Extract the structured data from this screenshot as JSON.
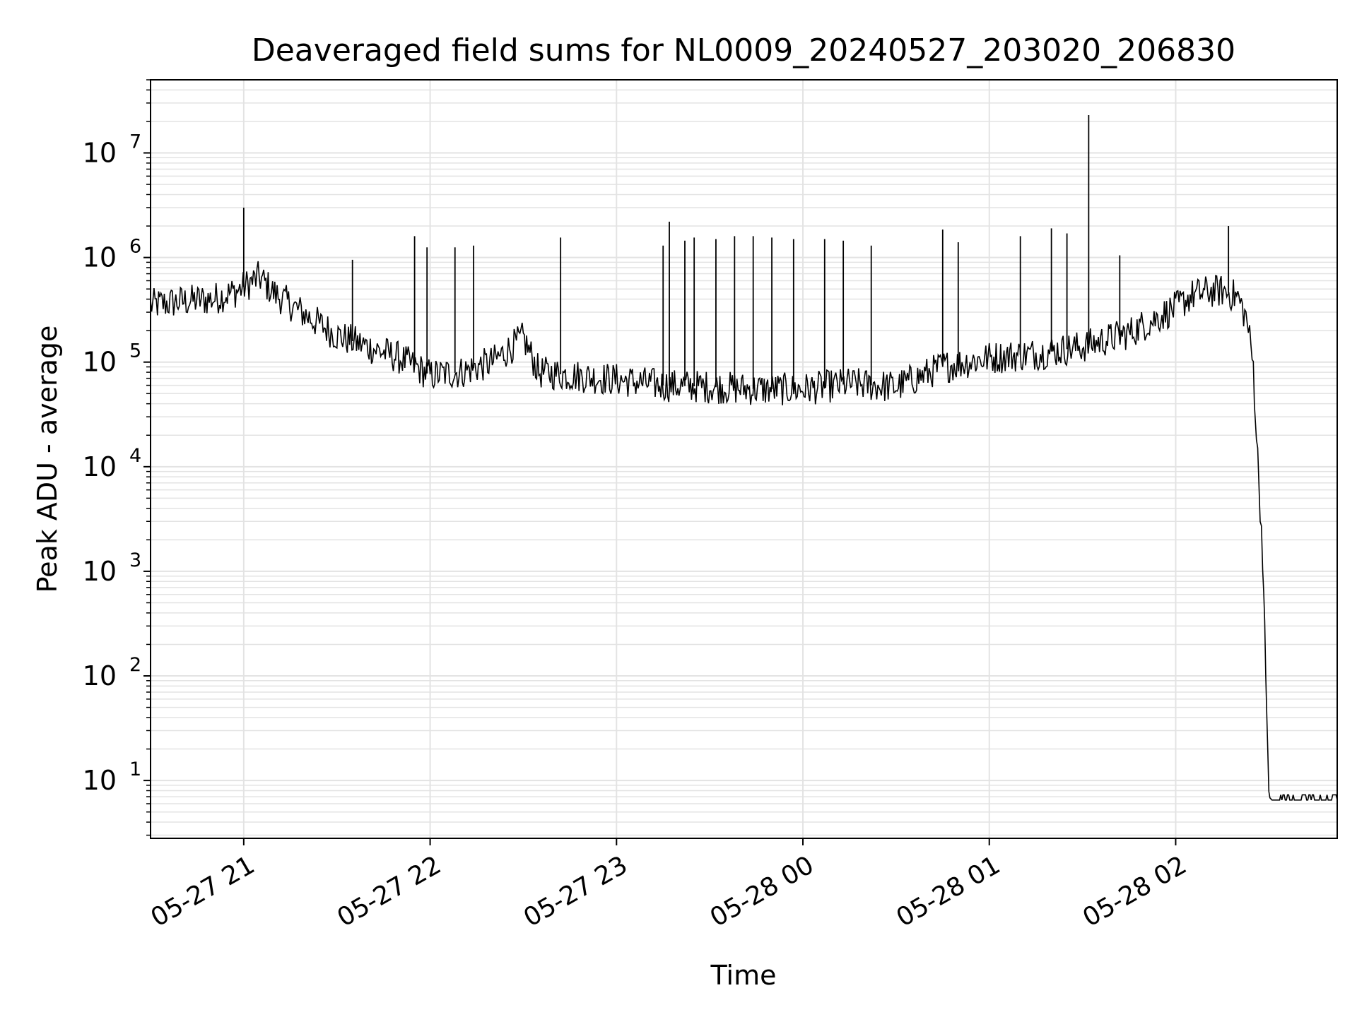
{
  "chart_data": {
    "type": "line",
    "title": "Deaveraged field sums for NL0009_20240527_203020_206830",
    "xlabel": "Time",
    "ylabel": "Peak ADU - average",
    "yscale": "log",
    "grid": true,
    "legend": "none",
    "line_color": "#000000",
    "grid_color": "#e3e3e3",
    "xlim": [
      "2024-05-27 20:30",
      "2024-05-28 02:52"
    ],
    "ylim": [
      2.8,
      50000000
    ],
    "x_ticks": [
      {
        "t": "2024-05-27 21:00",
        "label": "05-27 21"
      },
      {
        "t": "2024-05-27 22:00",
        "label": "05-27 22"
      },
      {
        "t": "2024-05-27 23:00",
        "label": "05-27 23"
      },
      {
        "t": "2024-05-28 00:00",
        "label": "05-28 00"
      },
      {
        "t": "2024-05-28 01:00",
        "label": "05-28 01"
      },
      {
        "t": "2024-05-28 02:00",
        "label": "05-28 02"
      }
    ],
    "y_ticks": [
      {
        "value": 10,
        "base": "10",
        "exp": "1"
      },
      {
        "value": 100,
        "base": "10",
        "exp": "2"
      },
      {
        "value": 1000,
        "base": "10",
        "exp": "3"
      },
      {
        "value": 10000,
        "base": "10",
        "exp": "4"
      },
      {
        "value": 100000,
        "base": "10",
        "exp": "5"
      },
      {
        "value": 1000000,
        "base": "10",
        "exp": "6"
      },
      {
        "value": 10000000,
        "base": "10",
        "exp": "7"
      }
    ],
    "series": [
      {
        "x": [
          "2024-05-27 20:30",
          "2024-05-27 20:40",
          "2024-05-27 20:50",
          "2024-05-27 20:58",
          "2024-05-27 21:05",
          "2024-05-27 21:10",
          "2024-05-27 21:20",
          "2024-05-27 21:30",
          "2024-05-27 21:40",
          "2024-05-27 21:50",
          "2024-05-27 22:00",
          "2024-05-27 22:10",
          "2024-05-27 22:20",
          "2024-05-27 22:30",
          "2024-05-27 22:35",
          "2024-05-27 22:45",
          "2024-05-27 23:00",
          "2024-05-27 23:15",
          "2024-05-27 23:30",
          "2024-05-27 23:45",
          "2024-05-28 00:00",
          "2024-05-28 00:15",
          "2024-05-28 00:30",
          "2024-05-28 00:45",
          "2024-05-28 01:00",
          "2024-05-28 01:15",
          "2024-05-28 01:30",
          "2024-05-28 01:45",
          "2024-05-28 02:00",
          "2024-05-28 02:05",
          "2024-05-28 02:10",
          "2024-05-28 02:15",
          "2024-05-28 02:20",
          "2024-05-28 02:23",
          "2024-05-28 02:25",
          "2024-05-28 02:26",
          "2024-05-28 02:28",
          "2024-05-28 02:29",
          "2024-05-28 02:30",
          "2024-05-28 02:31",
          "2024-05-28 02:32",
          "2024-05-28 02:40",
          "2024-05-28 02:52"
        ],
        "values": [
          350000,
          380000,
          400000,
          480000,
          650000,
          450000,
          280000,
          180000,
          140000,
          110000,
          75000,
          80000,
          100000,
          170000,
          80000,
          75000,
          68000,
          60000,
          58000,
          55000,
          55000,
          62000,
          58000,
          90000,
          110000,
          120000,
          140000,
          190000,
          330000,
          430000,
          470000,
          480000,
          420000,
          250000,
          90000,
          20000,
          1500,
          100,
          7,
          6.5,
          6.5,
          6.5,
          6.5
        ]
      }
    ],
    "spikes": [
      {
        "t": "2024-05-27 21:00",
        "value": 3000000
      },
      {
        "t": "2024-05-27 21:35",
        "value": 950000
      },
      {
        "t": "2024-05-27 21:55",
        "value": 1600000
      },
      {
        "t": "2024-05-27 21:59",
        "value": 1250000
      },
      {
        "t": "2024-05-27 22:08",
        "value": 1250000
      },
      {
        "t": "2024-05-27 22:14",
        "value": 1300000
      },
      {
        "t": "2024-05-27 22:42",
        "value": 1550000
      },
      {
        "t": "2024-05-27 23:15",
        "value": 1300000
      },
      {
        "t": "2024-05-27 23:17",
        "value": 2200000
      },
      {
        "t": "2024-05-27 23:22",
        "value": 1450000
      },
      {
        "t": "2024-05-27 23:25",
        "value": 1550000
      },
      {
        "t": "2024-05-27 23:32",
        "value": 1500000
      },
      {
        "t": "2024-05-27 23:38",
        "value": 1600000
      },
      {
        "t": "2024-05-27 23:44",
        "value": 1600000
      },
      {
        "t": "2024-05-27 23:50",
        "value": 1550000
      },
      {
        "t": "2024-05-27 23:57",
        "value": 1500000
      },
      {
        "t": "2024-05-28 00:07",
        "value": 1500000
      },
      {
        "t": "2024-05-28 00:13",
        "value": 1450000
      },
      {
        "t": "2024-05-28 00:22",
        "value": 1300000
      },
      {
        "t": "2024-05-28 00:45",
        "value": 1850000
      },
      {
        "t": "2024-05-28 00:50",
        "value": 1400000
      },
      {
        "t": "2024-05-28 01:10",
        "value": 1600000
      },
      {
        "t": "2024-05-28 01:20",
        "value": 1900000
      },
      {
        "t": "2024-05-28 01:25",
        "value": 1700000
      },
      {
        "t": "2024-05-28 01:32",
        "value": 23000000
      },
      {
        "t": "2024-05-28 01:42",
        "value": 1050000
      },
      {
        "t": "2024-05-28 02:17",
        "value": 2000000
      }
    ]
  }
}
